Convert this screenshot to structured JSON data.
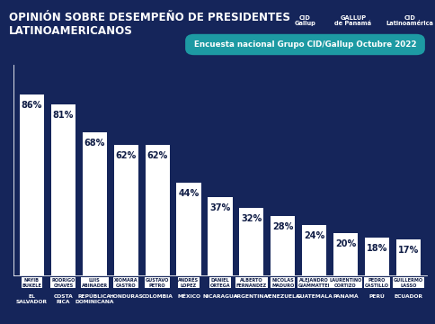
{
  "chart_data": {
    "type": "bar",
    "title": "OPINIÓN SOBRE DESEMPEÑO DE PRESIDENTES LATINOAMERICANOS",
    "subtitle": "Encuesta nacional Grupo CID/Gallup Octubre 2022",
    "logos": [
      "CID Gallup",
      "GALLUP de Panamá",
      "CID Latinoamérica"
    ],
    "categories": [
      "EL SALVADOR",
      "COSTA RICA",
      "REPÚBLICA DOMINICANA",
      "HONDURAS",
      "COLOMBIA",
      "MÉXICO",
      "NICARAGUA",
      "ARGENTINA",
      "VENEZUELA",
      "GUATEMALA",
      "PANAMÁ",
      "PERÚ",
      "ECUADOR"
    ],
    "presidents": [
      "NAYIB BUKELE",
      "RODRIGO CHAVES",
      "LUIS ABINADER",
      "XIOMARA CASTRO",
      "GUSTAVO PETRO",
      "ANDRÉS LOPEZ",
      "DANIEL ORTEGA",
      "ALBERTO FERNÁNDEZ",
      "NICOLAS MADURO",
      "ALEJANDRO GIAMMATTEI",
      "LAURENTINO CORTIZO",
      "PEDRO CASTILLO",
      "GUILLERMO LASSO"
    ],
    "values": [
      86,
      81,
      68,
      62,
      62,
      44,
      37,
      32,
      28,
      24,
      20,
      18,
      17
    ],
    "value_labels": [
      "86%",
      "81%",
      "68%",
      "62%",
      "62%",
      "44%",
      "37%",
      "32%",
      "28%",
      "24%",
      "20%",
      "18%",
      "17%"
    ],
    "color": "#ffffff",
    "ylim": [
      0,
      100
    ],
    "yticks": [],
    "data_labels": true,
    "tick_labels": "x",
    "grid": false
  }
}
